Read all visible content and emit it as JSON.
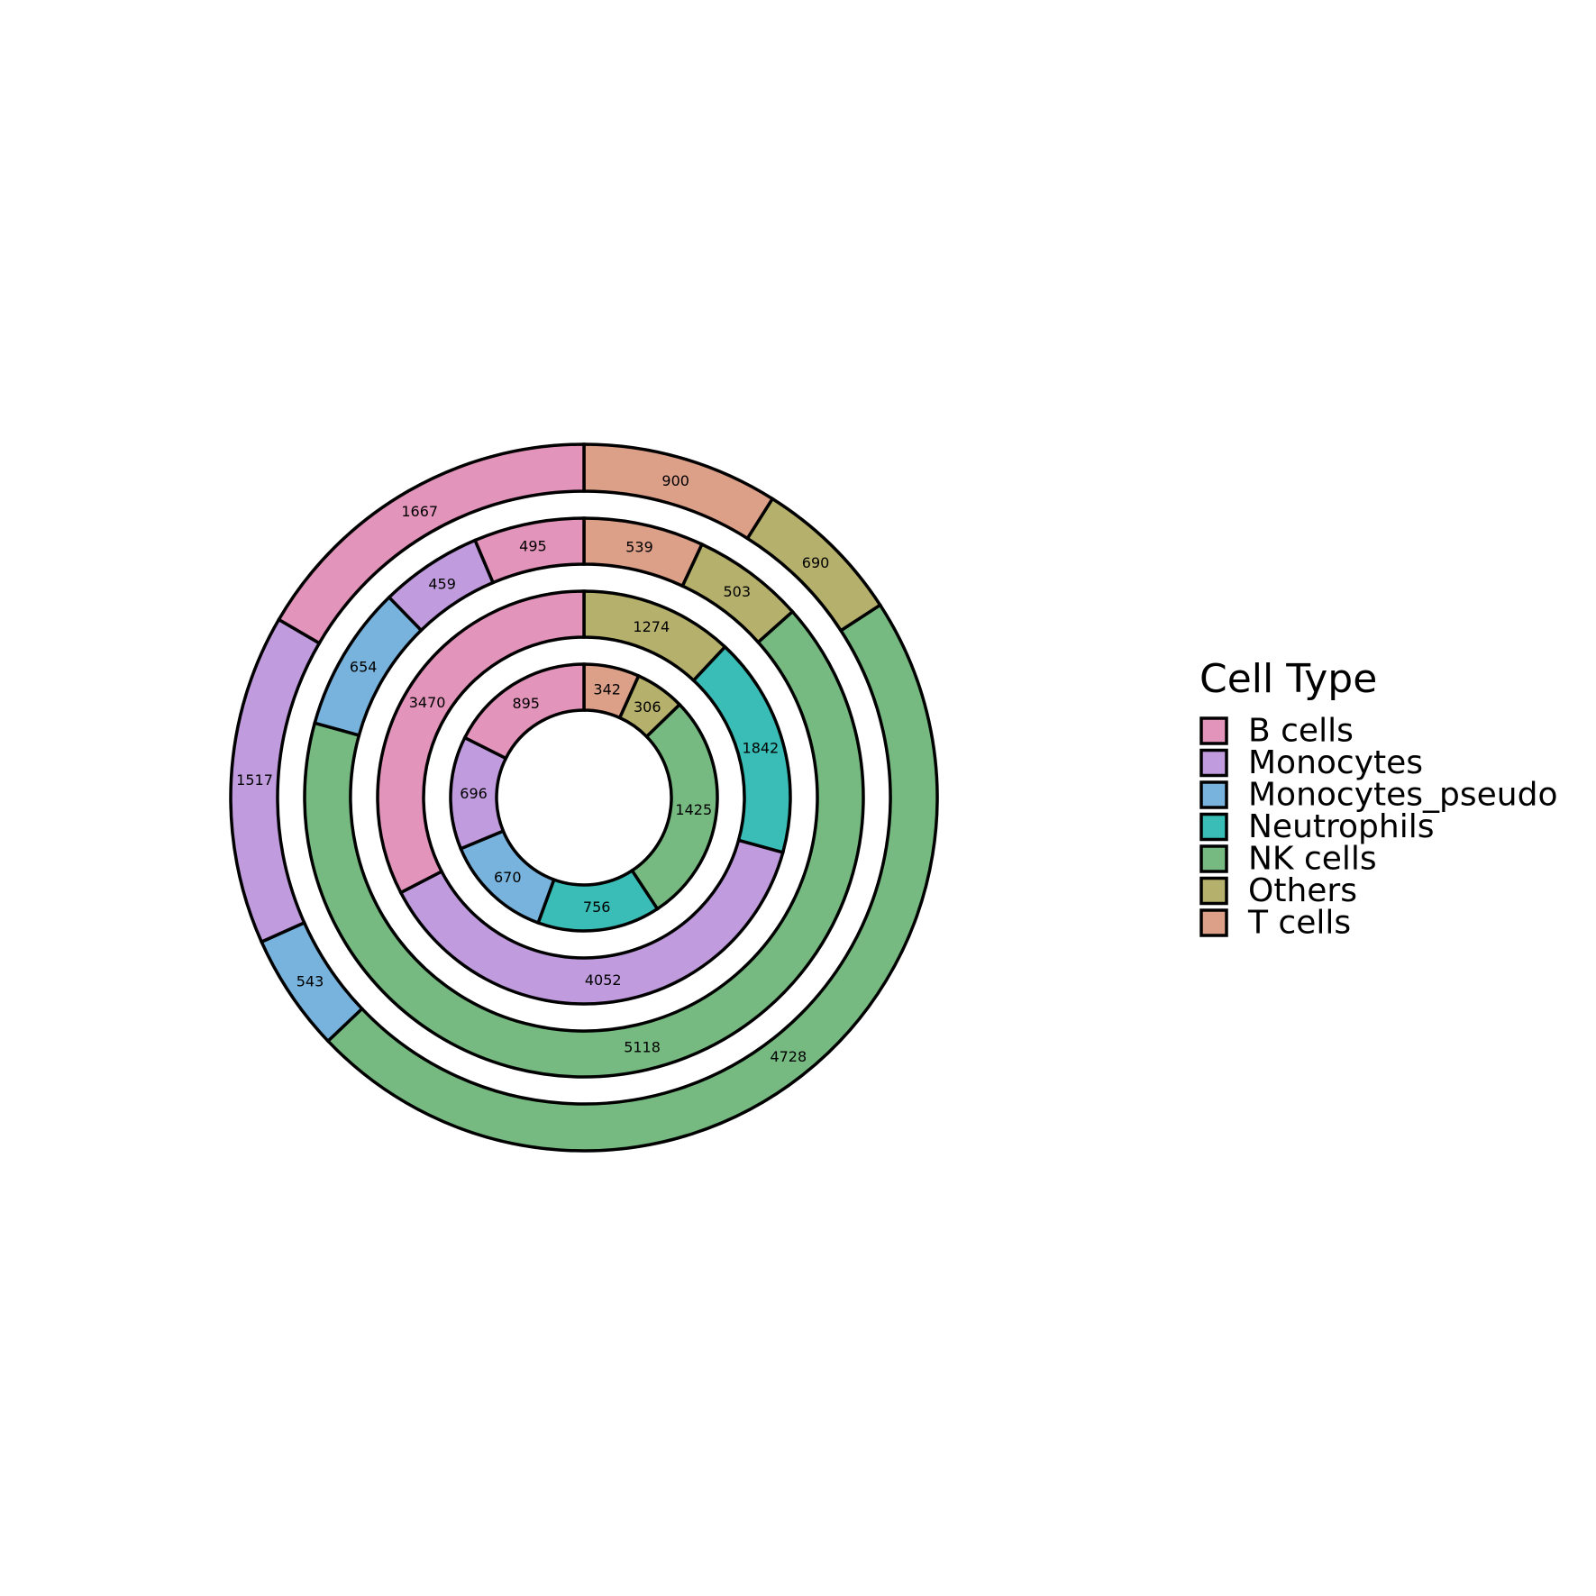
{
  "chart_data": {
    "type": "pie",
    "subtype": "nested-donut",
    "legend": {
      "title": "Cell Type",
      "placement": "right",
      "entries": [
        "B cells",
        "Monocytes",
        "Monocytes_pseudo",
        "Neutrophils",
        "NK cells",
        "Others",
        "T cells"
      ]
    },
    "colors": {
      "B cells": "#E294BB",
      "Monocytes": "#C09CDE",
      "Monocytes_pseudo": "#77B3DC",
      "Neutrophils": "#39BDB6",
      "NK cells": "#76BA81",
      "Others": "#B5B06B",
      "T cells": "#DC9F88"
    },
    "rings": [
      {
        "segments": [
          {
            "category": "T cells",
            "value": 342
          },
          {
            "category": "Others",
            "value": 306
          },
          {
            "category": "NK cells",
            "value": 1425
          },
          {
            "category": "Neutrophils",
            "value": 756
          },
          {
            "category": "Monocytes_pseudo",
            "value": 670
          },
          {
            "category": "Monocytes",
            "value": 696
          },
          {
            "category": "B cells",
            "value": 895
          }
        ]
      },
      {
        "segments": [
          {
            "category": "Others",
            "value": 1274
          },
          {
            "category": "Neutrophils",
            "value": 1842
          },
          {
            "category": "Monocytes",
            "value": 4052
          },
          {
            "category": "B cells",
            "value": 3470
          }
        ]
      },
      {
        "segments": [
          {
            "category": "T cells",
            "value": 539
          },
          {
            "category": "Others",
            "value": 503
          },
          {
            "category": "NK cells",
            "value": 5118
          },
          {
            "category": "Monocytes_pseudo",
            "value": 654
          },
          {
            "category": "Monocytes",
            "value": 459
          },
          {
            "category": "B cells",
            "value": 495
          }
        ]
      },
      {
        "segments": [
          {
            "category": "T cells",
            "value": 900
          },
          {
            "category": "Others",
            "value": 690
          },
          {
            "category": "NK cells",
            "value": 4728
          },
          {
            "category": "Monocytes_pseudo",
            "value": 543
          },
          {
            "category": "Monocytes",
            "value": 1517
          },
          {
            "category": "B cells",
            "value": 1667
          }
        ]
      }
    ]
  }
}
